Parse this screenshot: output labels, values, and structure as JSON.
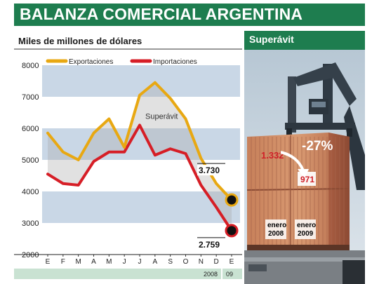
{
  "title": "BALANZA COMERCIAL ARGENTINA",
  "photo_panel": {
    "header": "Superávit",
    "container_left_value": "1.332",
    "container_right_value": "971",
    "change_label": "-27%",
    "left_label_line1": "enero",
    "left_label_line2": "2008",
    "right_label_line1": "enero",
    "right_label_line2": "2009"
  },
  "colors": {
    "exports": "#e8a812",
    "imports": "#d61e26",
    "band": "#c9d7e6",
    "banner": "#1e7d4f",
    "surplus_fill": "#a8a8a8"
  },
  "chart_data": {
    "type": "line",
    "title": "Miles de millones de dólares",
    "categories": [
      "E",
      "F",
      "M",
      "A",
      "M",
      "J",
      "J",
      "A",
      "S",
      "O",
      "N",
      "D",
      "E"
    ],
    "series": [
      {
        "name": "Exportaciones",
        "color": "#e8a812",
        "values": [
          5850,
          5250,
          5000,
          5850,
          6300,
          5400,
          7050,
          7450,
          6950,
          6300,
          5050,
          4250,
          3730
        ]
      },
      {
        "name": "Importaciones",
        "color": "#d61e26",
        "values": [
          4550,
          4250,
          4200,
          4950,
          5250,
          5250,
          6100,
          5150,
          5350,
          5200,
          4200,
          3500,
          2759
        ]
      }
    ],
    "ylim": [
      2000,
      8000
    ],
    "yticks": [
      2000,
      3000,
      4000,
      5000,
      6000,
      7000,
      8000
    ],
    "annotation": "Superávit",
    "end_labels": {
      "exports": "3.730",
      "imports": "2.759"
    },
    "year_labels": [
      "2008",
      "09"
    ],
    "legend_position": "top",
    "xlabel": "",
    "ylabel": ""
  }
}
